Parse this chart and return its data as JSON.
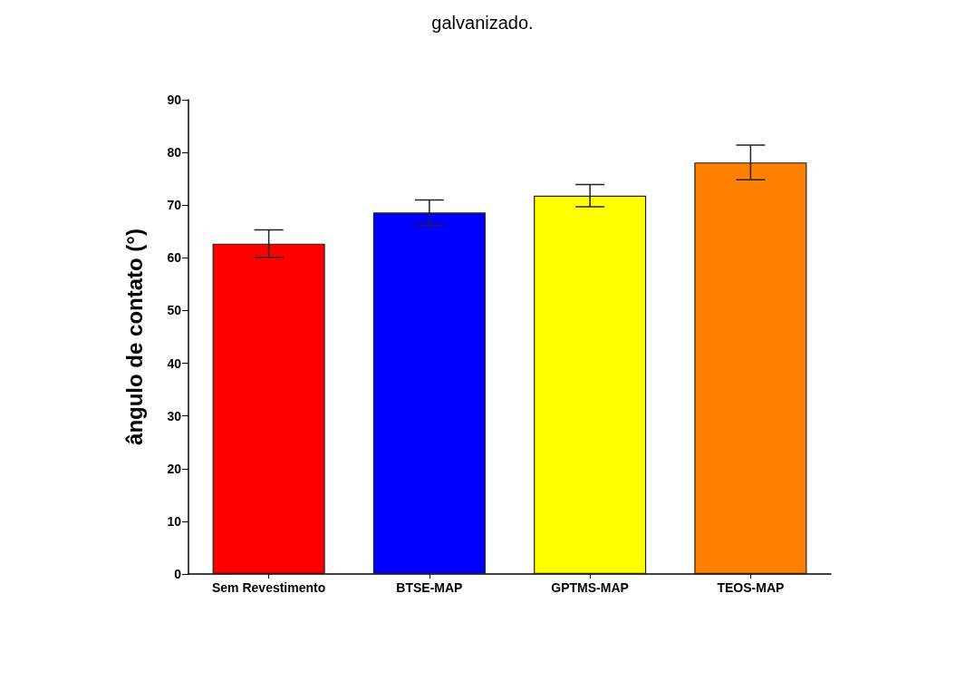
{
  "chart_data": {
    "type": "bar",
    "title": "galvanizado.",
    "ylabel": "ângulo de contato (°)",
    "categories": [
      "Sem Revestimento",
      "BTSE-MAP",
      "GPTMS-MAP",
      "TEOS-MAP"
    ],
    "values": [
      62.7,
      68.6,
      71.8,
      78.1
    ],
    "colors": [
      "#ff0000",
      "#0000ff",
      "#ffff00",
      "#ff8000"
    ],
    "errors": [
      2.6,
      2.4,
      2.1,
      3.3
    ],
    "ylim": [
      0,
      90
    ],
    "yticks": [
      0,
      10,
      20,
      30,
      40,
      50,
      60,
      70,
      80,
      90
    ],
    "grid": false
  }
}
